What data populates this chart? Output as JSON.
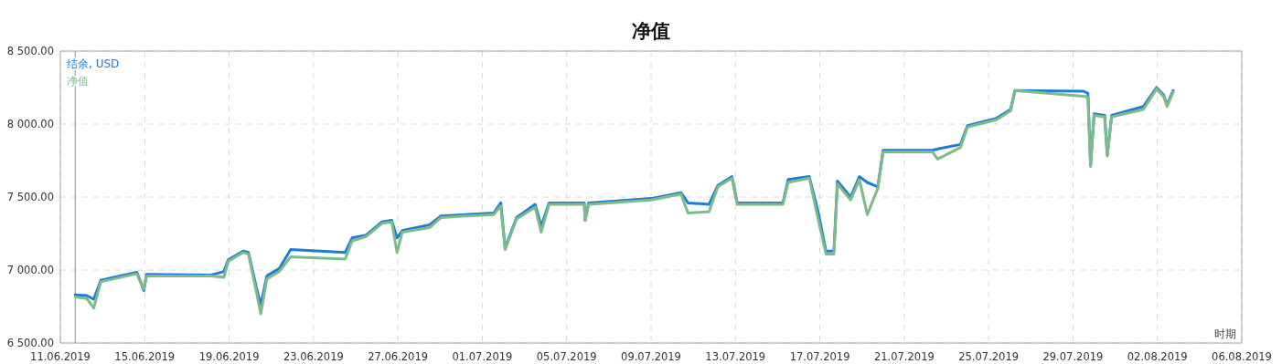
{
  "chart_data": {
    "type": "line",
    "title": "净值",
    "xlabel": "时期",
    "xlim": [
      "2019-06-11",
      "2019-08-06"
    ],
    "xticks": [
      {
        "value": "2019-06-11",
        "label": "11.06.2019"
      },
      {
        "value": "2019-06-15",
        "label": "15.06.2019"
      },
      {
        "value": "2019-06-19",
        "label": "19.06.2019"
      },
      {
        "value": "2019-06-23",
        "label": "23.06.2019"
      },
      {
        "value": "2019-06-27",
        "label": "27.06.2019"
      },
      {
        "value": "2019-07-01",
        "label": "01.07.2019"
      },
      {
        "value": "2019-07-05",
        "label": "05.07.2019"
      },
      {
        "value": "2019-07-09",
        "label": "09.07.2019"
      },
      {
        "value": "2019-07-13",
        "label": "13.07.2019"
      },
      {
        "value": "2019-07-17",
        "label": "17.07.2019"
      },
      {
        "value": "2019-07-21",
        "label": "21.07.2019"
      },
      {
        "value": "2019-07-25",
        "label": "25.07.2019"
      },
      {
        "value": "2019-07-29",
        "label": "29.07.2019"
      },
      {
        "value": "2019-08-02",
        "label": "02.08.2019"
      },
      {
        "value": "2019-08-06",
        "label": "06.08.2019"
      }
    ],
    "ylim": [
      6500,
      8500
    ],
    "yticks": [
      {
        "value": 6500,
        "label": "6 500.00"
      },
      {
        "value": 7000,
        "label": "7 000.00"
      },
      {
        "value": 7500,
        "label": "7 500.00"
      },
      {
        "value": 8000,
        "label": "8 000.00"
      },
      {
        "value": 8500,
        "label": "8 500.00"
      }
    ],
    "grid": true,
    "legend": "top left",
    "line_style": "solid",
    "marker": "none",
    "ref_lines": [
      {
        "axis": "x",
        "value": "2019-06-11T17:00",
        "color": "#b0b0b0"
      }
    ],
    "series": [
      {
        "name": "结余, USD",
        "color": "#1a7fd4",
        "x": [
          "2019-06-11T17:00",
          "2019-06-12T06:00",
          "2019-06-12T14:00",
          "2019-06-12T22:00",
          "2019-06-13T13:00",
          "2019-06-14T15:00",
          "2019-06-14T23:00",
          "2019-06-15T02:00",
          "2019-06-18T03:00",
          "2019-06-18T18:00",
          "2019-06-18T23:00",
          "2019-06-19T16:00",
          "2019-06-19T22:00",
          "2019-06-20T07:00",
          "2019-06-20T12:00",
          "2019-06-20T19:00",
          "2019-06-21T09:00",
          "2019-06-21T22:00",
          "2019-06-24T12:00",
          "2019-06-24T20:00",
          "2019-06-25T12:00",
          "2019-06-26T06:00",
          "2019-06-26T17:00",
          "2019-06-26T23:00",
          "2019-06-27T05:00",
          "2019-06-28T12:00",
          "2019-06-29T01:00",
          "2019-07-01T13:00",
          "2019-07-01T21:00",
          "2019-07-02T02:00",
          "2019-07-02T15:00",
          "2019-07-03T12:00",
          "2019-07-03T19:00",
          "2019-07-04T04:00",
          "2019-07-05T20:00",
          "2019-07-05T21:00",
          "2019-07-06T01:00",
          "2019-07-09T00:00",
          "2019-07-10T10:00",
          "2019-07-10T18:00",
          "2019-07-11T18:00",
          "2019-07-12T04:00",
          "2019-07-12T20:00",
          "2019-07-13T02:00",
          "2019-07-15T06:00",
          "2019-07-15T12:00",
          "2019-07-16T12:00",
          "2019-07-16T22:00",
          "2019-07-17T07:00",
          "2019-07-17T16:00",
          "2019-07-17T20:00",
          "2019-07-18T11:00",
          "2019-07-18T21:00",
          "2019-07-19T06:00",
          "2019-07-19T18:00",
          "2019-07-20T00:00",
          "2019-07-22T08:00",
          "2019-07-22T14:00",
          "2019-07-23T16:00",
          "2019-07-24T00:00",
          "2019-07-25T09:00",
          "2019-07-26T01:00",
          "2019-07-26T06:00",
          "2019-07-29T12:00",
          "2019-07-29T17:00",
          "2019-07-29T20:00",
          "2019-07-30T00:00",
          "2019-07-30T12:00",
          "2019-07-30T15:00",
          "2019-07-30T20:00",
          "2019-08-01T08:00",
          "2019-08-01T23:00",
          "2019-08-02T07:00",
          "2019-08-02T11:00",
          "2019-08-02T18:00"
        ],
        "values": [
          6830,
          6825,
          6800,
          6930,
          6950,
          6985,
          6860,
          6970,
          6965,
          6990,
          7070,
          7130,
          7120,
          6880,
          6760,
          6960,
          7010,
          7140,
          7120,
          7220,
          7240,
          7330,
          7340,
          7220,
          7270,
          7310,
          7370,
          7390,
          7460,
          7150,
          7360,
          7450,
          7300,
          7460,
          7460,
          7340,
          7460,
          7490,
          7530,
          7460,
          7450,
          7580,
          7640,
          7460,
          7460,
          7620,
          7640,
          7400,
          7130,
          7130,
          7610,
          7500,
          7640,
          7600,
          7570,
          7820,
          7820,
          7830,
          7860,
          7990,
          8040,
          8100,
          8230,
          8225,
          8210,
          7720,
          8070,
          8060,
          7790,
          8060,
          8120,
          8250,
          8200,
          8130,
          8230
        ]
      },
      {
        "name": "净值",
        "color": "#7fba8a",
        "x": [
          "2019-06-11T17:00",
          "2019-06-12T06:00",
          "2019-06-12T14:00",
          "2019-06-12T22:00",
          "2019-06-13T13:00",
          "2019-06-14T15:00",
          "2019-06-14T23:00",
          "2019-06-15T02:00",
          "2019-06-18T03:00",
          "2019-06-18T18:00",
          "2019-06-18T23:00",
          "2019-06-19T16:00",
          "2019-06-19T22:00",
          "2019-06-20T07:00",
          "2019-06-20T12:00",
          "2019-06-20T19:00",
          "2019-06-21T09:00",
          "2019-06-21T22:00",
          "2019-06-24T12:00",
          "2019-06-24T20:00",
          "2019-06-25T12:00",
          "2019-06-26T06:00",
          "2019-06-26T17:00",
          "2019-06-26T23:00",
          "2019-06-27T05:00",
          "2019-06-28T12:00",
          "2019-06-29T01:00",
          "2019-07-01T13:00",
          "2019-07-01T21:00",
          "2019-07-02T02:00",
          "2019-07-02T15:00",
          "2019-07-03T12:00",
          "2019-07-03T19:00",
          "2019-07-04T04:00",
          "2019-07-05T20:00",
          "2019-07-05T21:00",
          "2019-07-06T01:00",
          "2019-07-09T00:00",
          "2019-07-10T10:00",
          "2019-07-10T18:00",
          "2019-07-11T18:00",
          "2019-07-12T04:00",
          "2019-07-12T20:00",
          "2019-07-13T02:00",
          "2019-07-15T06:00",
          "2019-07-15T12:00",
          "2019-07-16T12:00",
          "2019-07-16T22:00",
          "2019-07-17T07:00",
          "2019-07-17T16:00",
          "2019-07-17T20:00",
          "2019-07-18T11:00",
          "2019-07-18T21:00",
          "2019-07-19T06:00",
          "2019-07-19T18:00",
          "2019-07-20T00:00",
          "2019-07-22T08:00",
          "2019-07-22T14:00",
          "2019-07-23T16:00",
          "2019-07-24T00:00",
          "2019-07-25T09:00",
          "2019-07-26T01:00",
          "2019-07-26T06:00",
          "2019-07-29T12:00",
          "2019-07-29T17:00",
          "2019-07-29T20:00",
          "2019-07-30T00:00",
          "2019-07-30T12:00",
          "2019-07-30T15:00",
          "2019-07-30T20:00",
          "2019-08-01T08:00",
          "2019-08-01T23:00",
          "2019-08-02T07:00",
          "2019-08-02T11:00",
          "2019-08-02T18:00"
        ],
        "values": [
          6815,
          6805,
          6740,
          6920,
          6940,
          6975,
          6870,
          6960,
          6960,
          6950,
          7060,
          7120,
          7110,
          6850,
          6700,
          6940,
          6990,
          7090,
          7075,
          7200,
          7230,
          7320,
          7330,
          7120,
          7260,
          7290,
          7360,
          7380,
          7440,
          7140,
          7350,
          7430,
          7260,
          7450,
          7450,
          7340,
          7450,
          7480,
          7520,
          7390,
          7400,
          7570,
          7630,
          7450,
          7450,
          7600,
          7630,
          7350,
          7110,
          7110,
          7590,
          7480,
          7620,
          7380,
          7560,
          7810,
          7810,
          7760,
          7840,
          7980,
          8030,
          8090,
          8230,
          8190,
          8185,
          7710,
          8060,
          8050,
          7780,
          8050,
          8100,
          8240,
          8190,
          8120,
          8220
        ]
      }
    ]
  }
}
